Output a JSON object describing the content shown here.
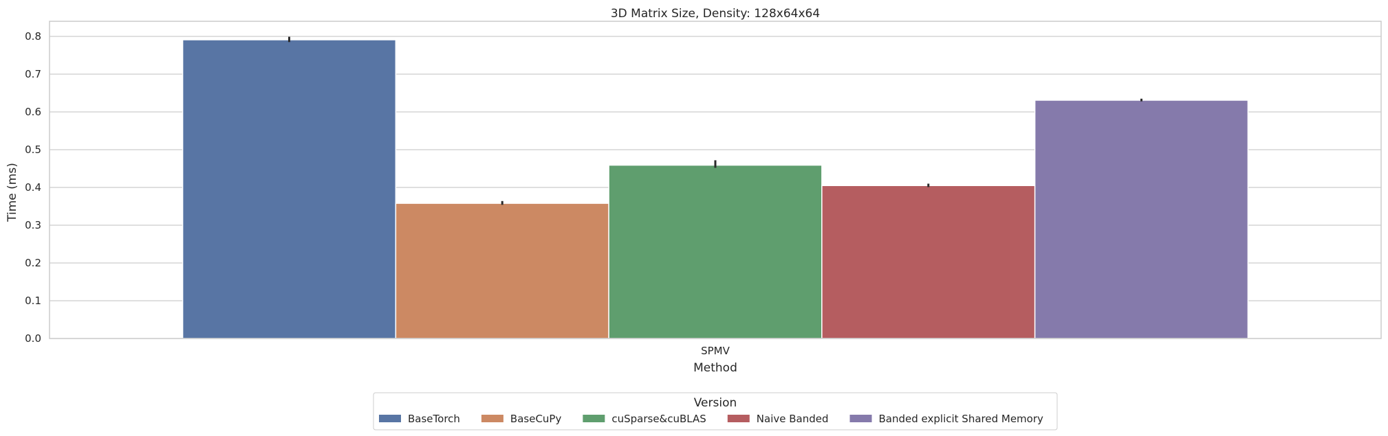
{
  "chart_data": {
    "type": "bar",
    "title": "3D Matrix Size, Density: 128x64x64",
    "xlabel": "Method",
    "ylabel": "Time (ms)",
    "categories": [
      "SPMV"
    ],
    "ylim": [
      0,
      0.84
    ],
    "yticks": [
      "0.0",
      "0.1",
      "0.2",
      "0.3",
      "0.4",
      "0.5",
      "0.6",
      "0.7",
      "0.8"
    ],
    "grid": "horizontal",
    "legend": {
      "title": "Version",
      "placement": "bottom-center"
    },
    "series": [
      {
        "name": "BaseTorch",
        "values": [
          0.791
        ],
        "error": [
          0.785,
          0.799
        ],
        "color": "#5875a4"
      },
      {
        "name": "BaseCuPy",
        "values": [
          0.358
        ],
        "error": [
          0.354,
          0.364
        ],
        "color": "#cc8963"
      },
      {
        "name": "cuSparse&cuBLAS",
        "values": [
          0.459
        ],
        "error": [
          0.452,
          0.472
        ],
        "color": "#5f9e6e"
      },
      {
        "name": "Naive Banded",
        "values": [
          0.405
        ],
        "error": [
          0.401,
          0.41
        ],
        "color": "#b55d60"
      },
      {
        "name": "Banded explicit Shared Memory",
        "values": [
          0.631
        ],
        "error": [
          0.628,
          0.635
        ],
        "color": "#857aab"
      }
    ]
  }
}
